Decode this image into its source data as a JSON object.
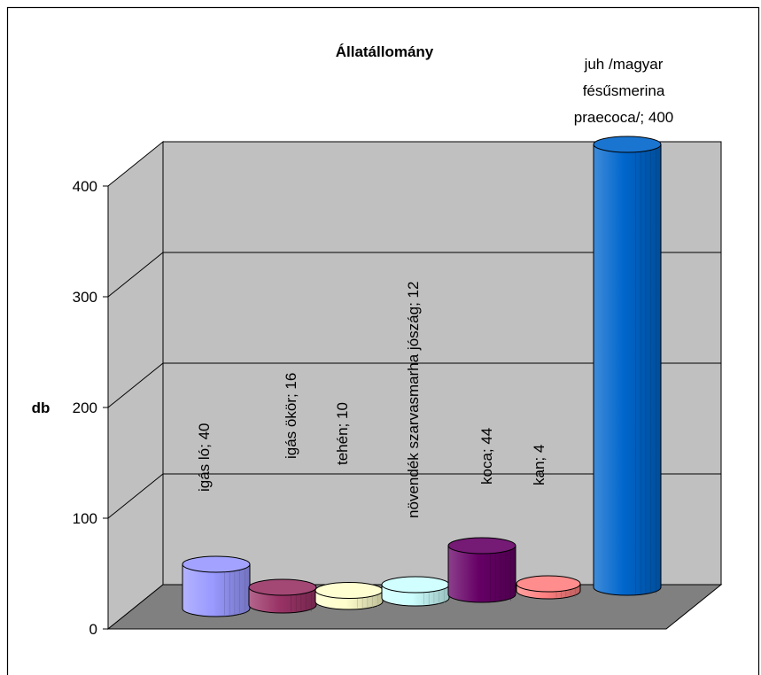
{
  "chart_data": {
    "type": "bar",
    "title": "Állatállomány",
    "ylabel": "db",
    "ylim": [
      0,
      400
    ],
    "yticks": [
      "0",
      "100",
      "200",
      "300",
      "400"
    ],
    "grid": true,
    "legend": "none",
    "categories": [
      "igás ló",
      "igás ökör",
      "tehén",
      "növendék szarvasmarha jószág",
      "koca",
      "kan",
      "juh /magyar fésűsmerina praecoca/"
    ],
    "values": [
      40,
      16,
      10,
      12,
      44,
      4,
      400
    ],
    "data_labels": [
      "igás ló; 40",
      "igás ökör; 16",
      "tehén; 10",
      "növendék szarvasmarha jószág; 12",
      "koca; 44",
      "kan; 4",
      "juh /magyar fésűsmerina praecoca/; 400"
    ],
    "colors": [
      "#9999ff",
      "#993366",
      "#ffffcc",
      "#ccffff",
      "#660066",
      "#ff8080",
      "#0066cc"
    ]
  }
}
